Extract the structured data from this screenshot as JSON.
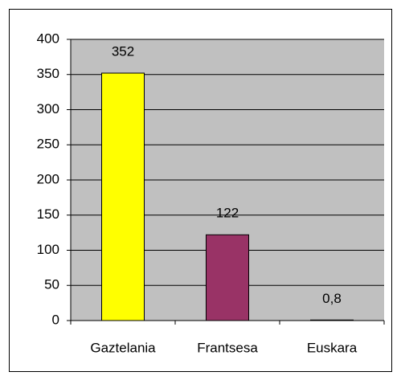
{
  "chart_data": {
    "type": "bar",
    "categories": [
      "Gaztelania",
      "Frantsesa",
      "Euskara"
    ],
    "values": [
      352,
      122,
      0.8
    ],
    "value_labels": [
      "352",
      "122",
      "0,8"
    ],
    "colors": [
      "#ffff00",
      "#993366",
      "#ccffff"
    ],
    "ylim": [
      0,
      400
    ],
    "yticks": [
      0,
      50,
      100,
      150,
      200,
      250,
      300,
      350,
      400
    ],
    "grid": true,
    "plot_background": "#c0c0c0"
  }
}
